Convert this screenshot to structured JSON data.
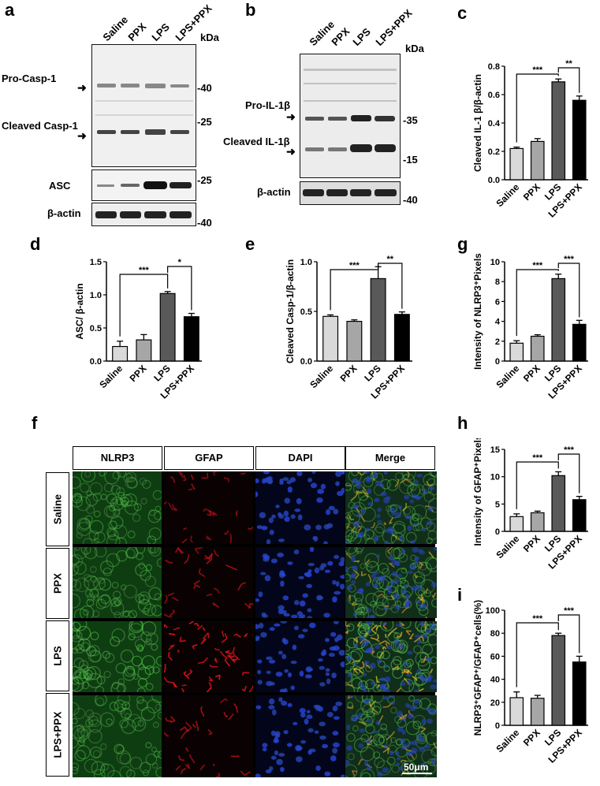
{
  "panels": {
    "a": "a",
    "b": "b",
    "c": "c",
    "d": "d",
    "e": "e",
    "f": "f",
    "g": "g",
    "h": "h",
    "i": "i"
  },
  "blot_a": {
    "lanes": [
      "Saline",
      "PPX",
      "LPS",
      "LPS+PPX"
    ],
    "kda_header": "kDa",
    "labels": [
      "Pro-Casp-1",
      "Cleaved Casp-1",
      "ASC",
      "β-actin"
    ],
    "markers": [
      "-40",
      "-25",
      "-25",
      "-40"
    ]
  },
  "blot_b": {
    "lanes": [
      "Saline",
      "PPX",
      "LPS",
      "LPS+PPX"
    ],
    "kda_header": "kDa",
    "labels": [
      "Pro-IL-1β",
      "Cleaved IL-1β",
      "β-actin"
    ],
    "markers": [
      "-35",
      "-15",
      "-40"
    ]
  },
  "micrograph": {
    "columns": [
      "NLRP3",
      "GFAP",
      "DAPI",
      "Merge"
    ],
    "rows": [
      "Saline",
      "PPX",
      "LPS",
      "LPS+PPX"
    ],
    "scale_bar": "50μm"
  },
  "chart_data": [
    {
      "id": "c",
      "type": "bar",
      "categories": [
        "Saline",
        "PPX",
        "LPS",
        "LPS+PPX"
      ],
      "values": [
        0.22,
        0.27,
        0.69,
        0.56
      ],
      "errors": [
        0.01,
        0.02,
        0.02,
        0.03
      ],
      "ylabel": "Cleaved IL-1 β/β-actin",
      "ylim": [
        0,
        0.8
      ],
      "yticks": [
        "0.0",
        "0.2",
        "0.4",
        "0.6",
        "0.8"
      ],
      "significance": [
        "***",
        "**"
      ],
      "colors": [
        "#d9d9d9",
        "#a6a6a6",
        "#595959",
        "#000000"
      ]
    },
    {
      "id": "d",
      "type": "bar",
      "categories": [
        "Saline",
        "PPX",
        "LPS",
        "LPS+PPX"
      ],
      "values": [
        0.22,
        0.32,
        1.02,
        0.67
      ],
      "errors": [
        0.08,
        0.08,
        0.03,
        0.05
      ],
      "ylabel": "ASC/ β-actin",
      "ylim": [
        0,
        1.5
      ],
      "yticks": [
        "0.0",
        "0.5",
        "1.0",
        "1.5"
      ],
      "significance": [
        "***",
        "*"
      ],
      "colors": [
        "#d9d9d9",
        "#a6a6a6",
        "#595959",
        "#000000"
      ]
    },
    {
      "id": "e",
      "type": "bar",
      "categories": [
        "Saline",
        "PPX",
        "LPS",
        "LPS+PPX"
      ],
      "values": [
        0.45,
        0.4,
        0.83,
        0.47
      ],
      "errors": [
        0.015,
        0.015,
        0.12,
        0.025
      ],
      "ylabel": "Cleaved Casp-1/β-actin",
      "ylim": [
        0,
        1.0
      ],
      "yticks": [
        "0.0",
        "0.5",
        "1.0"
      ],
      "significance": [
        "***",
        "**"
      ],
      "colors": [
        "#d9d9d9",
        "#a6a6a6",
        "#595959",
        "#000000"
      ]
    },
    {
      "id": "g",
      "type": "bar",
      "categories": [
        "Saline",
        "PPX",
        "LPS",
        "LPS+PPX"
      ],
      "values": [
        1.8,
        2.5,
        8.3,
        3.7
      ],
      "errors": [
        0.25,
        0.15,
        0.45,
        0.4
      ],
      "ylabel": "Intensity of NLRP3⁺Pixels",
      "ylim": [
        0,
        10
      ],
      "yticks": [
        "0",
        "2",
        "4",
        "6",
        "8",
        "10"
      ],
      "significance": [
        "***",
        "***"
      ],
      "colors": [
        "#d9d9d9",
        "#a6a6a6",
        "#595959",
        "#000000"
      ]
    },
    {
      "id": "h",
      "type": "bar",
      "categories": [
        "Saline",
        "PPX",
        "LPS",
        "LPS+PPX"
      ],
      "values": [
        2.7,
        3.4,
        10.2,
        5.8
      ],
      "errors": [
        0.5,
        0.3,
        0.7,
        0.6
      ],
      "ylabel": "Intensity of GFAP⁺Pixels",
      "ylim": [
        0,
        15
      ],
      "yticks": [
        "0",
        "5",
        "10",
        "15"
      ],
      "significance": [
        "***",
        "***"
      ],
      "colors": [
        "#d9d9d9",
        "#a6a6a6",
        "#595959",
        "#000000"
      ]
    },
    {
      "id": "i",
      "type": "bar",
      "categories": [
        "Saline",
        "PPX",
        "LPS",
        "LPS+PPX"
      ],
      "values": [
        24,
        23.5,
        78,
        55
      ],
      "errors": [
        5,
        2.5,
        2,
        5
      ],
      "ylabel": "NLRP3⁺GFAP⁺/GFAP⁺cells(%)",
      "ylim": [
        0,
        100
      ],
      "yticks": [
        "0",
        "20",
        "40",
        "60",
        "80",
        "100"
      ],
      "significance": [
        "***",
        "***"
      ],
      "colors": [
        "#d9d9d9",
        "#a6a6a6",
        "#595959",
        "#000000"
      ]
    }
  ]
}
